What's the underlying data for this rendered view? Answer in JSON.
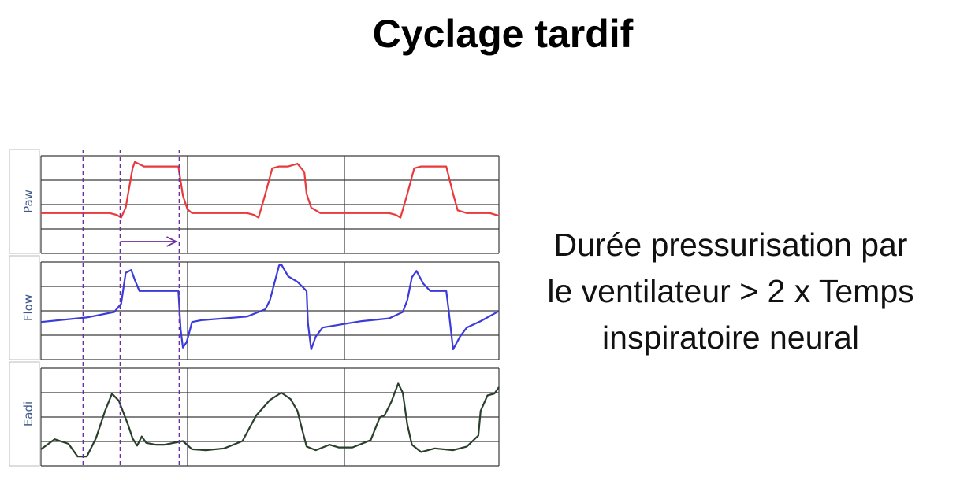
{
  "title": "Cyclage tardif",
  "caption_lines": [
    "Durée pressurisation par",
    "le ventilateur > 2 x Temps",
    "inspiratoire neural"
  ],
  "colors": {
    "paw": "#e8393b",
    "flow": "#3b3bdb",
    "eadi": "#2a3f2c",
    "marker": "#6a2fa0",
    "grid": "#3a3a3a",
    "label": "#3f5a8a"
  },
  "chart_data": {
    "type": "line",
    "x_range": [
      0,
      1
    ],
    "grid": true,
    "panels": [
      {
        "label": "Paw",
        "color": "#e8393b",
        "y_range": [
          0,
          1
        ],
        "points": [
          [
            0,
            0.39
          ],
          [
            0.15,
            0.39
          ],
          [
            0.165,
            0.37
          ],
          [
            0.175,
            0.34
          ],
          [
            0.185,
            0.45
          ],
          [
            0.2,
            0.88
          ],
          [
            0.205,
            0.95
          ],
          [
            0.225,
            0.9
          ],
          [
            0.3,
            0.9
          ],
          [
            0.31,
            0.58
          ],
          [
            0.32,
            0.43
          ],
          [
            0.33,
            0.39
          ],
          [
            0.45,
            0.39
          ],
          [
            0.465,
            0.37
          ],
          [
            0.475,
            0.34
          ],
          [
            0.49,
            0.6
          ],
          [
            0.505,
            0.88
          ],
          [
            0.52,
            0.9
          ],
          [
            0.54,
            0.9
          ],
          [
            0.56,
            0.93
          ],
          [
            0.575,
            0.84
          ],
          [
            0.58,
            0.6
          ],
          [
            0.59,
            0.45
          ],
          [
            0.6,
            0.42
          ],
          [
            0.61,
            0.39
          ],
          [
            0.76,
            0.39
          ],
          [
            0.775,
            0.37
          ],
          [
            0.785,
            0.34
          ],
          [
            0.8,
            0.6
          ],
          [
            0.815,
            0.88
          ],
          [
            0.83,
            0.9
          ],
          [
            0.885,
            0.9
          ],
          [
            0.9,
            0.6
          ],
          [
            0.91,
            0.42
          ],
          [
            0.93,
            0.39
          ],
          [
            0.98,
            0.39
          ],
          [
            1,
            0.36
          ]
        ]
      },
      {
        "label": "Flow",
        "color": "#3b3bdb",
        "y_range": [
          0,
          1
        ],
        "points": [
          [
            0,
            0.36
          ],
          [
            0.1,
            0.41
          ],
          [
            0.16,
            0.47
          ],
          [
            0.175,
            0.56
          ],
          [
            0.185,
            0.9
          ],
          [
            0.197,
            0.93
          ],
          [
            0.205,
            0.82
          ],
          [
            0.215,
            0.7
          ],
          [
            0.3,
            0.7
          ],
          [
            0.305,
            0.28
          ],
          [
            0.31,
            0.08
          ],
          [
            0.318,
            0.14
          ],
          [
            0.33,
            0.36
          ],
          [
            0.35,
            0.38
          ],
          [
            0.45,
            0.42
          ],
          [
            0.49,
            0.5
          ],
          [
            0.5,
            0.6
          ],
          [
            0.52,
            0.98
          ],
          [
            0.525,
            0.99
          ],
          [
            0.54,
            0.86
          ],
          [
            0.56,
            0.8
          ],
          [
            0.58,
            0.7
          ],
          [
            0.583,
            0.35
          ],
          [
            0.59,
            0.06
          ],
          [
            0.6,
            0.2
          ],
          [
            0.615,
            0.3
          ],
          [
            0.7,
            0.37
          ],
          [
            0.76,
            0.4
          ],
          [
            0.79,
            0.47
          ],
          [
            0.8,
            0.6
          ],
          [
            0.81,
            0.85
          ],
          [
            0.82,
            0.92
          ],
          [
            0.835,
            0.78
          ],
          [
            0.85,
            0.7
          ],
          [
            0.885,
            0.7
          ],
          [
            0.89,
            0.5
          ],
          [
            0.9,
            0.06
          ],
          [
            0.915,
            0.2
          ],
          [
            0.93,
            0.3
          ],
          [
            0.96,
            0.37
          ],
          [
            1,
            0.48
          ]
        ]
      },
      {
        "label": "Eadi",
        "color": "#2a3f2c",
        "y_range": [
          0,
          1
        ],
        "points": [
          [
            0,
            0.13
          ],
          [
            0.03,
            0.24
          ],
          [
            0.06,
            0.19
          ],
          [
            0.08,
            0.05
          ],
          [
            0.1,
            0.05
          ],
          [
            0.12,
            0.25
          ],
          [
            0.14,
            0.55
          ],
          [
            0.155,
            0.74
          ],
          [
            0.17,
            0.66
          ],
          [
            0.19,
            0.4
          ],
          [
            0.2,
            0.25
          ],
          [
            0.21,
            0.17
          ],
          [
            0.22,
            0.27
          ],
          [
            0.23,
            0.2
          ],
          [
            0.25,
            0.18
          ],
          [
            0.27,
            0.18
          ],
          [
            0.31,
            0.22
          ],
          [
            0.33,
            0.13
          ],
          [
            0.36,
            0.12
          ],
          [
            0.4,
            0.14
          ],
          [
            0.44,
            0.22
          ],
          [
            0.47,
            0.5
          ],
          [
            0.5,
            0.67
          ],
          [
            0.525,
            0.75
          ],
          [
            0.545,
            0.68
          ],
          [
            0.56,
            0.55
          ],
          [
            0.57,
            0.35
          ],
          [
            0.58,
            0.16
          ],
          [
            0.6,
            0.12
          ],
          [
            0.63,
            0.18
          ],
          [
            0.65,
            0.15
          ],
          [
            0.68,
            0.15
          ],
          [
            0.72,
            0.23
          ],
          [
            0.74,
            0.48
          ],
          [
            0.75,
            0.5
          ],
          [
            0.765,
            0.65
          ],
          [
            0.78,
            0.85
          ],
          [
            0.79,
            0.75
          ],
          [
            0.8,
            0.4
          ],
          [
            0.81,
            0.18
          ],
          [
            0.83,
            0.1
          ],
          [
            0.86,
            0.14
          ],
          [
            0.9,
            0.12
          ],
          [
            0.93,
            0.16
          ],
          [
            0.955,
            0.28
          ],
          [
            0.96,
            0.55
          ],
          [
            0.975,
            0.72
          ],
          [
            0.99,
            0.74
          ],
          [
            1,
            0.81
          ]
        ]
      }
    ],
    "markers": {
      "vertical_lines_x": [
        0.092,
        0.173,
        0.302
      ],
      "arrow_x": [
        0.173,
        0.302
      ]
    }
  }
}
